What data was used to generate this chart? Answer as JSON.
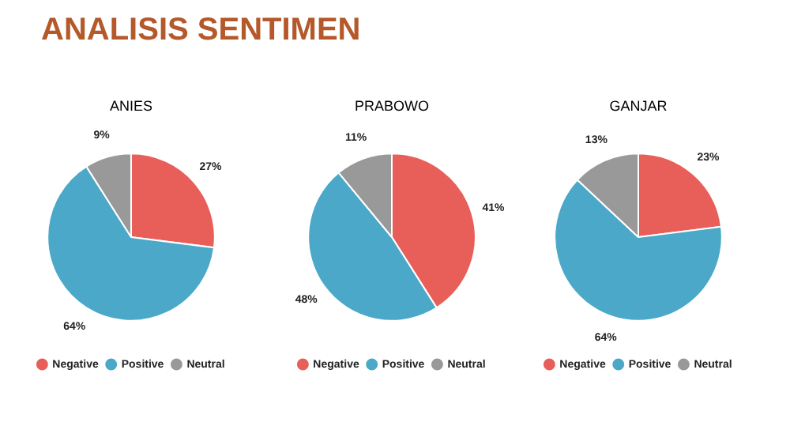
{
  "chart_data": [
    {
      "type": "other",
      "title": "ANALISIS SENTIMEN"
    },
    {
      "type": "pie",
      "title": "ANIES",
      "categories": [
        "Negative",
        "Positive",
        "Neutral"
      ],
      "values": [
        27,
        64,
        9
      ],
      "value_labels": [
        "27%",
        "64%",
        "9%"
      ],
      "colors": [
        "#e85f5a",
        "#4ba8c8",
        "#999999"
      ],
      "legend": "bottom"
    },
    {
      "type": "pie",
      "title": "PRABOWO",
      "categories": [
        "Negative",
        "Positive",
        "Neutral"
      ],
      "values": [
        41,
        48,
        11
      ],
      "value_labels": [
        "41%",
        "48%",
        "11%"
      ],
      "colors": [
        "#e85f5a",
        "#4ba8c8",
        "#999999"
      ],
      "legend": "bottom"
    },
    {
      "type": "pie",
      "title": "GANJAR",
      "categories": [
        "Negative",
        "Positive",
        "Neutral"
      ],
      "values": [
        23,
        64,
        13
      ],
      "value_labels": [
        "23%",
        "64%",
        "13%"
      ],
      "colors": [
        "#e85f5a",
        "#4ba8c8",
        "#999999"
      ],
      "legend": "bottom"
    }
  ]
}
